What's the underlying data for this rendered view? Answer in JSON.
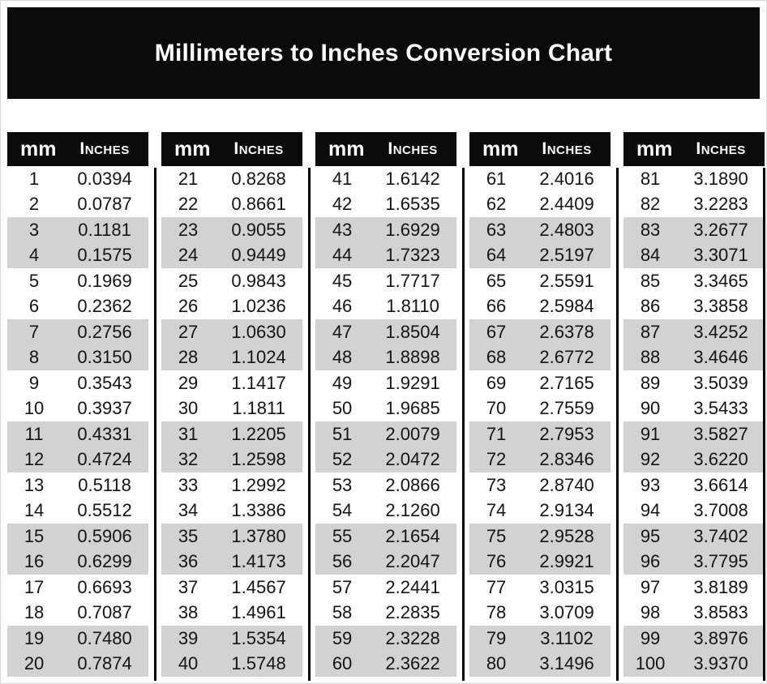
{
  "page": {
    "title": "Millimeters to Inches Conversion Chart"
  },
  "colors": {
    "banner_bg": "#0b0b0b",
    "banner_text": "#ffffff",
    "header_bg": "#0b0b0b",
    "header_text": "#ffffff",
    "row_stripe": "#d2d2d2",
    "row_plain": "#ffffff",
    "divider": "#000000",
    "body_text": "#141414"
  },
  "tables": [
    {
      "mm_label": "mm",
      "inches_label": "Inches",
      "rows": [
        {
          "mm": "1",
          "in": "0.0394"
        },
        {
          "mm": "2",
          "in": "0.0787"
        },
        {
          "mm": "3",
          "in": "0.1181"
        },
        {
          "mm": "4",
          "in": "0.1575"
        },
        {
          "mm": "5",
          "in": "0.1969"
        },
        {
          "mm": "6",
          "in": "0.2362"
        },
        {
          "mm": "7",
          "in": "0.2756"
        },
        {
          "mm": "8",
          "in": "0.3150"
        },
        {
          "mm": "9",
          "in": "0.3543"
        },
        {
          "mm": "10",
          "in": "0.3937"
        },
        {
          "mm": "11",
          "in": "0.4331"
        },
        {
          "mm": "12",
          "in": "0.4724"
        },
        {
          "mm": "13",
          "in": "0.5118"
        },
        {
          "mm": "14",
          "in": "0.5512"
        },
        {
          "mm": "15",
          "in": "0.5906"
        },
        {
          "mm": "16",
          "in": "0.6299"
        },
        {
          "mm": "17",
          "in": "0.6693"
        },
        {
          "mm": "18",
          "in": "0.7087"
        },
        {
          "mm": "19",
          "in": "0.7480"
        },
        {
          "mm": "20",
          "in": "0.7874"
        }
      ]
    },
    {
      "mm_label": "mm",
      "inches_label": "Inches",
      "rows": [
        {
          "mm": "21",
          "in": "0.8268"
        },
        {
          "mm": "22",
          "in": "0.8661"
        },
        {
          "mm": "23",
          "in": "0.9055"
        },
        {
          "mm": "24",
          "in": "0.9449"
        },
        {
          "mm": "25",
          "in": "0.9843"
        },
        {
          "mm": "26",
          "in": "1.0236"
        },
        {
          "mm": "27",
          "in": "1.0630"
        },
        {
          "mm": "28",
          "in": "1.1024"
        },
        {
          "mm": "29",
          "in": "1.1417"
        },
        {
          "mm": "30",
          "in": "1.1811"
        },
        {
          "mm": "31",
          "in": "1.2205"
        },
        {
          "mm": "32",
          "in": "1.2598"
        },
        {
          "mm": "33",
          "in": "1.2992"
        },
        {
          "mm": "34",
          "in": "1.3386"
        },
        {
          "mm": "35",
          "in": "1.3780"
        },
        {
          "mm": "36",
          "in": "1.4173"
        },
        {
          "mm": "37",
          "in": "1.4567"
        },
        {
          "mm": "38",
          "in": "1.4961"
        },
        {
          "mm": "39",
          "in": "1.5354"
        },
        {
          "mm": "40",
          "in": "1.5748"
        }
      ]
    },
    {
      "mm_label": "mm",
      "inches_label": "Inches",
      "rows": [
        {
          "mm": "41",
          "in": "1.6142"
        },
        {
          "mm": "42",
          "in": "1.6535"
        },
        {
          "mm": "43",
          "in": "1.6929"
        },
        {
          "mm": "44",
          "in": "1.7323"
        },
        {
          "mm": "45",
          "in": "1.7717"
        },
        {
          "mm": "46",
          "in": "1.8110"
        },
        {
          "mm": "47",
          "in": "1.8504"
        },
        {
          "mm": "48",
          "in": "1.8898"
        },
        {
          "mm": "49",
          "in": "1.9291"
        },
        {
          "mm": "50",
          "in": "1.9685"
        },
        {
          "mm": "51",
          "in": "2.0079"
        },
        {
          "mm": "52",
          "in": "2.0472"
        },
        {
          "mm": "53",
          "in": "2.0866"
        },
        {
          "mm": "54",
          "in": "2.1260"
        },
        {
          "mm": "55",
          "in": "2.1654"
        },
        {
          "mm": "56",
          "in": "2.2047"
        },
        {
          "mm": "57",
          "in": "2.2441"
        },
        {
          "mm": "58",
          "in": "2.2835"
        },
        {
          "mm": "59",
          "in": "2.3228"
        },
        {
          "mm": "60",
          "in": "2.3622"
        }
      ]
    },
    {
      "mm_label": "mm",
      "inches_label": "Inches",
      "rows": [
        {
          "mm": "61",
          "in": "2.4016"
        },
        {
          "mm": "62",
          "in": "2.4409"
        },
        {
          "mm": "63",
          "in": "2.4803"
        },
        {
          "mm": "64",
          "in": "2.5197"
        },
        {
          "mm": "65",
          "in": "2.5591"
        },
        {
          "mm": "66",
          "in": "2.5984"
        },
        {
          "mm": "67",
          "in": "2.6378"
        },
        {
          "mm": "68",
          "in": "2.6772"
        },
        {
          "mm": "69",
          "in": "2.7165"
        },
        {
          "mm": "70",
          "in": "2.7559"
        },
        {
          "mm": "71",
          "in": "2.7953"
        },
        {
          "mm": "72",
          "in": "2.8346"
        },
        {
          "mm": "73",
          "in": "2.8740"
        },
        {
          "mm": "74",
          "in": "2.9134"
        },
        {
          "mm": "75",
          "in": "2.9528"
        },
        {
          "mm": "76",
          "in": "2.9921"
        },
        {
          "mm": "77",
          "in": "3.0315"
        },
        {
          "mm": "78",
          "in": "3.0709"
        },
        {
          "mm": "79",
          "in": "3.1102"
        },
        {
          "mm": "80",
          "in": "3.1496"
        }
      ]
    },
    {
      "mm_label": "mm",
      "inches_label": "Inches",
      "rows": [
        {
          "mm": "81",
          "in": "3.1890"
        },
        {
          "mm": "82",
          "in": "3.2283"
        },
        {
          "mm": "83",
          "in": "3.2677"
        },
        {
          "mm": "84",
          "in": "3.3071"
        },
        {
          "mm": "85",
          "in": "3.3465"
        },
        {
          "mm": "86",
          "in": "3.3858"
        },
        {
          "mm": "87",
          "in": "3.4252"
        },
        {
          "mm": "88",
          "in": "3.4646"
        },
        {
          "mm": "89",
          "in": "3.5039"
        },
        {
          "mm": "90",
          "in": "3.5433"
        },
        {
          "mm": "91",
          "in": "3.5827"
        },
        {
          "mm": "92",
          "in": "3.6220"
        },
        {
          "mm": "93",
          "in": "3.6614"
        },
        {
          "mm": "94",
          "in": "3.7008"
        },
        {
          "mm": "95",
          "in": "3.7402"
        },
        {
          "mm": "96",
          "in": "3.7795"
        },
        {
          "mm": "97",
          "in": "3.8189"
        },
        {
          "mm": "98",
          "in": "3.8583"
        },
        {
          "mm": "99",
          "in": "3.8976"
        },
        {
          "mm": "100",
          "in": "3.9370"
        }
      ]
    }
  ]
}
